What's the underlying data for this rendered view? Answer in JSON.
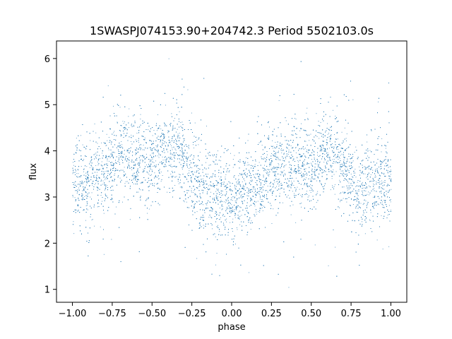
{
  "chart_data": {
    "type": "scatter",
    "title": "1SWASPJ074153.90+204742.3 Period 5502103.0s",
    "xlabel": "phase",
    "ylabel": "flux",
    "xlim": [
      -1.1,
      1.1
    ],
    "ylim": [
      0.72,
      6.38
    ],
    "xticks": [
      -1.0,
      -0.75,
      -0.5,
      -0.25,
      0.0,
      0.25,
      0.5,
      0.75,
      1.0
    ],
    "xtick_labels": [
      "−1.00",
      "−0.75",
      "−0.50",
      "−0.25",
      "0.00",
      "0.25",
      "0.50",
      "0.75",
      "1.00"
    ],
    "yticks": [
      1,
      2,
      3,
      4,
      5,
      6
    ],
    "ytick_labels": [
      "1",
      "2",
      "3",
      "4",
      "5",
      "6"
    ],
    "grid": false,
    "point_color": "#1f77b4",
    "trend": {
      "phase": [
        -1.0,
        -0.9,
        -0.8,
        -0.7,
        -0.6,
        -0.5,
        -0.4,
        -0.35,
        -0.3,
        -0.2,
        -0.1,
        0.0,
        0.1,
        0.2,
        0.3,
        0.4,
        0.5,
        0.6,
        0.65,
        0.7,
        0.8,
        0.9,
        1.0
      ],
      "flux": [
        3.3,
        3.2,
        3.6,
        3.95,
        3.85,
        3.75,
        4.1,
        4.05,
        3.7,
        3.2,
        3.05,
        3.0,
        3.1,
        3.4,
        3.75,
        3.7,
        3.65,
        3.95,
        4.0,
        3.6,
        3.1,
        3.35,
        3.3
      ]
    },
    "spread": 0.45,
    "n_points": 9000
  }
}
